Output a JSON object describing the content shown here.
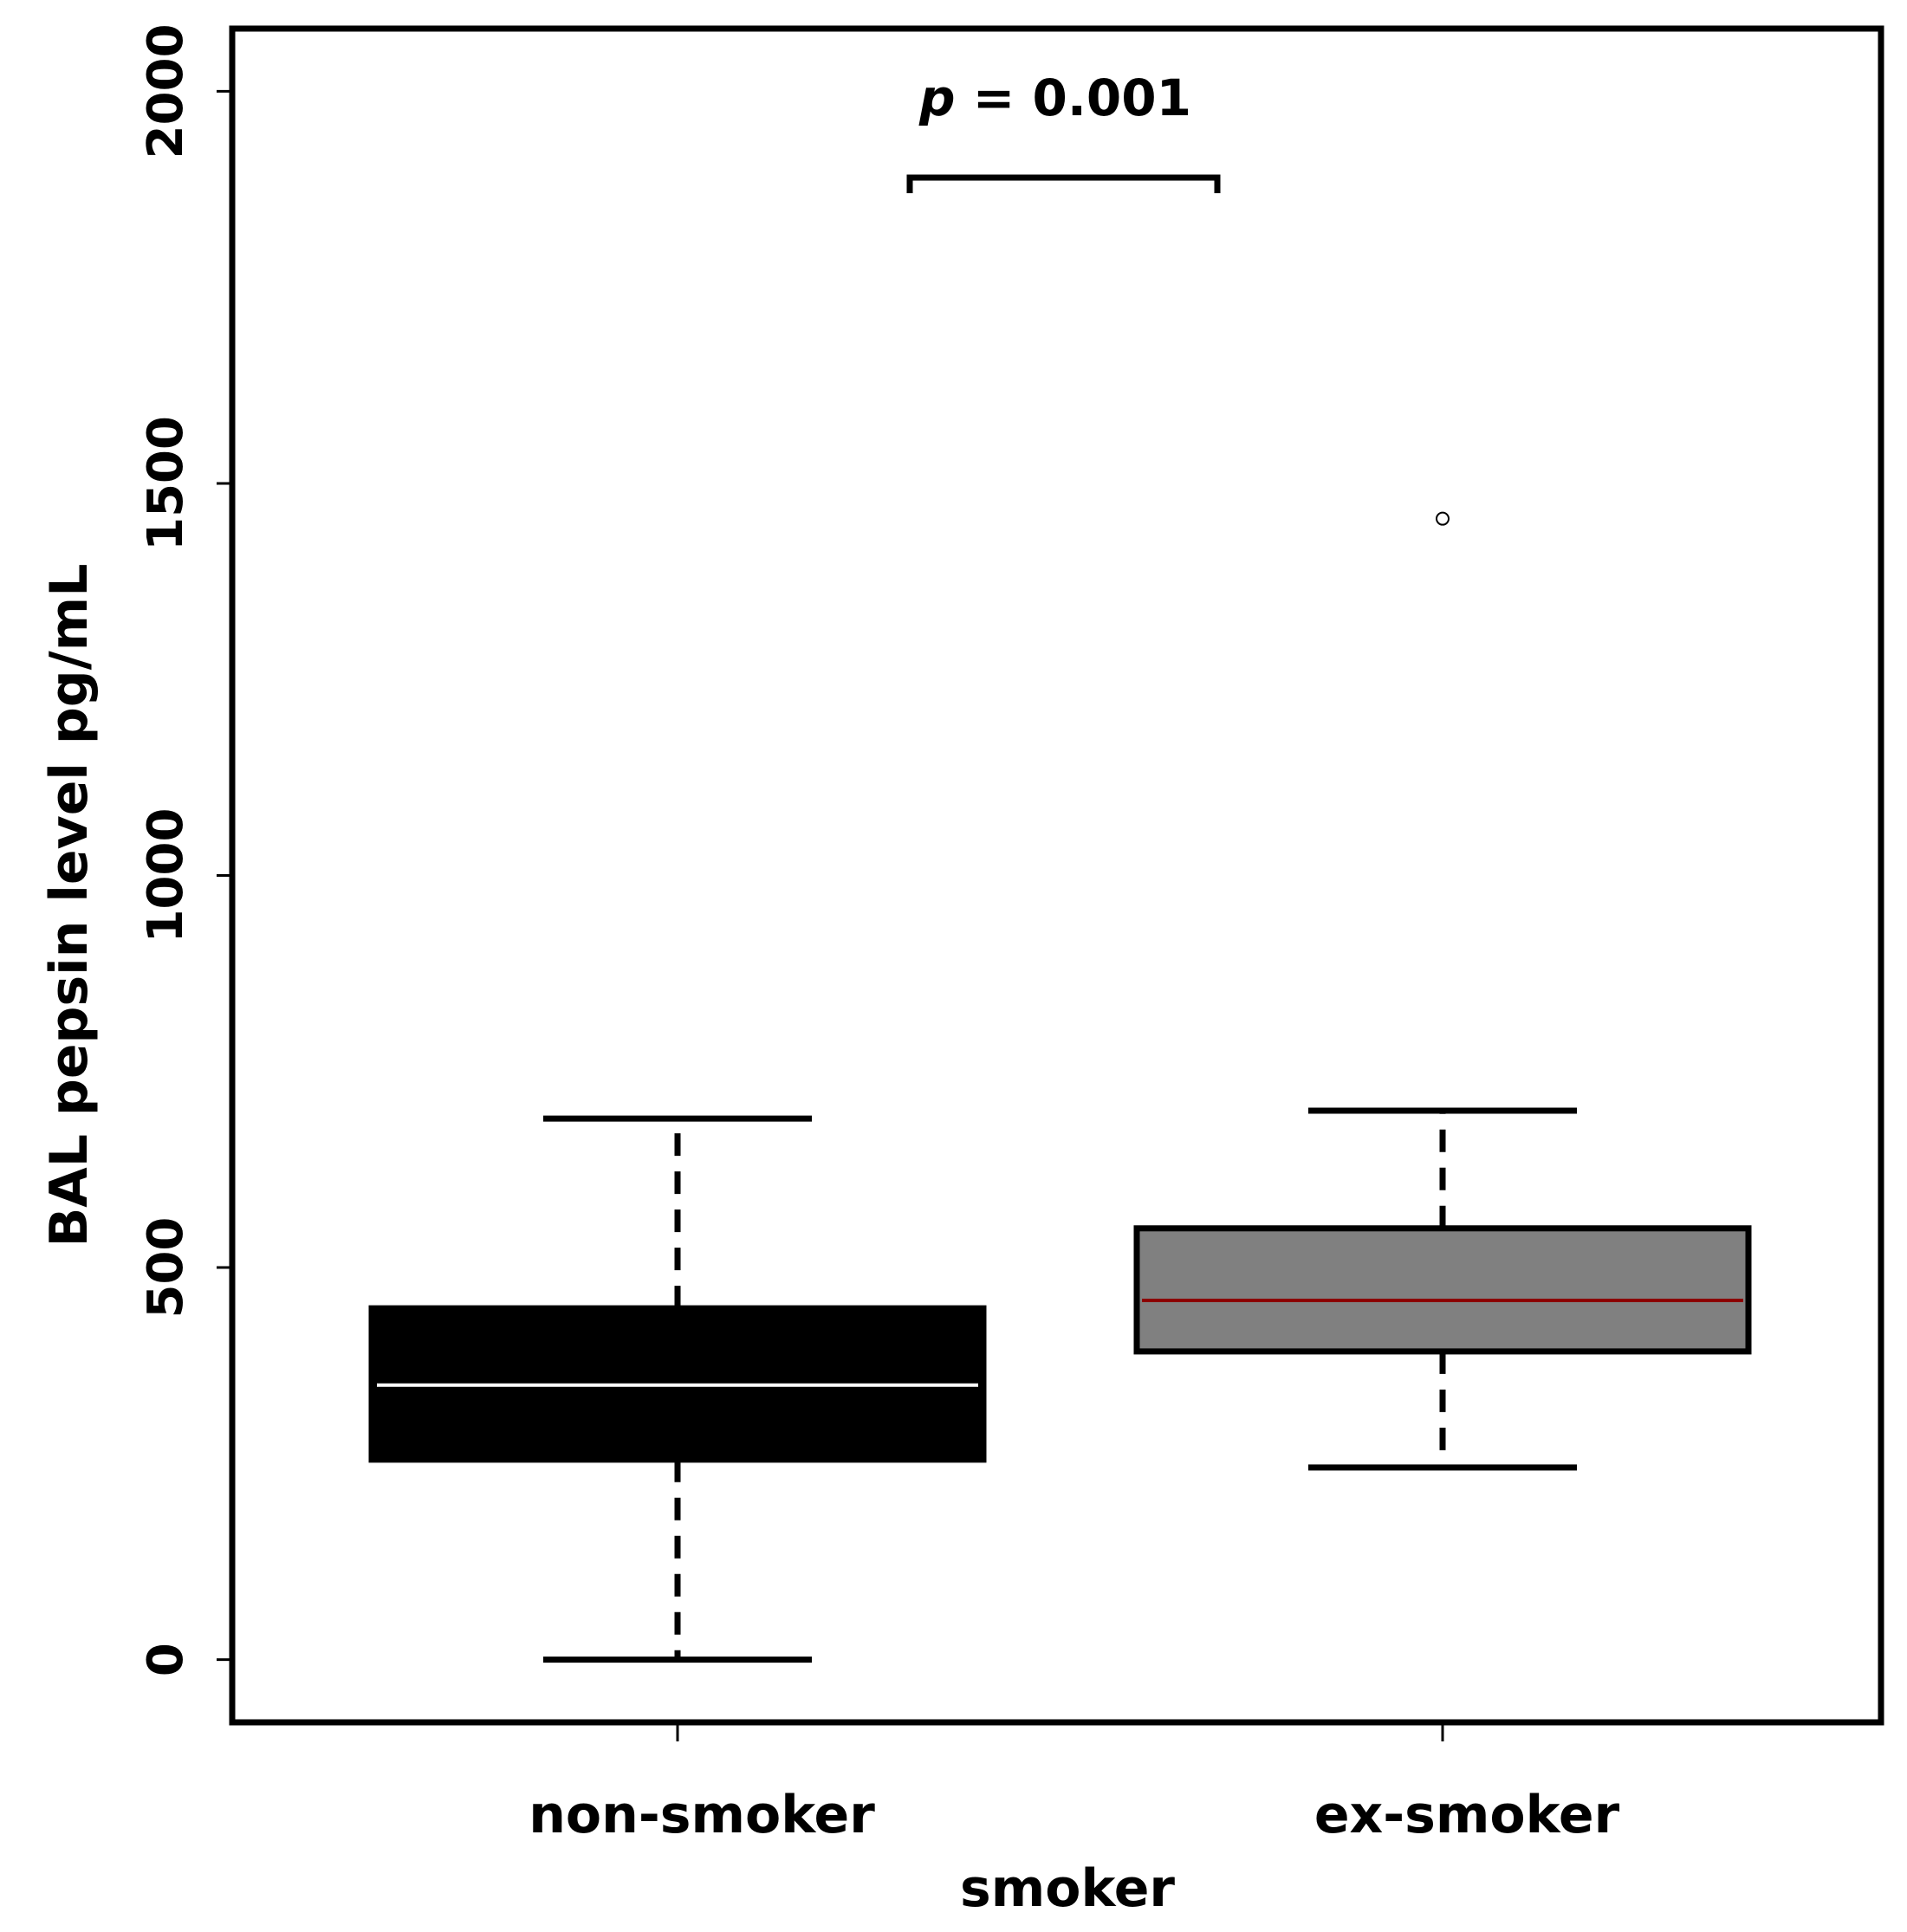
{
  "chart_data": {
    "type": "box",
    "title": "",
    "xlabel": "smoker",
    "ylabel": "BAL pepsin level pg/mL",
    "ylim": [
      -80,
      2080
    ],
    "yticks": [
      "0",
      "500",
      "1000",
      "1500",
      "2000"
    ],
    "categories": [
      "non-smoker",
      "ex-smoker"
    ],
    "boxes": [
      {
        "category": "non-smoker",
        "whisker_low": 0,
        "q1": 255,
        "median": 350,
        "q3": 448,
        "whisker_high": 690,
        "outliers": [],
        "fill": "#000000",
        "median_color": "#ffffff"
      },
      {
        "category": "ex-smoker",
        "whisker_low": 245,
        "q1": 393,
        "median": 458,
        "q3": 550,
        "whisker_high": 700,
        "outliers": [
          1455
        ],
        "fill": "#808080",
        "median_color": "#8b0000"
      }
    ],
    "annotation": {
      "prefix": "p",
      "text": " = 0.001",
      "between": [
        "non-smoker",
        "ex-smoker"
      ],
      "y": 1890
    }
  }
}
